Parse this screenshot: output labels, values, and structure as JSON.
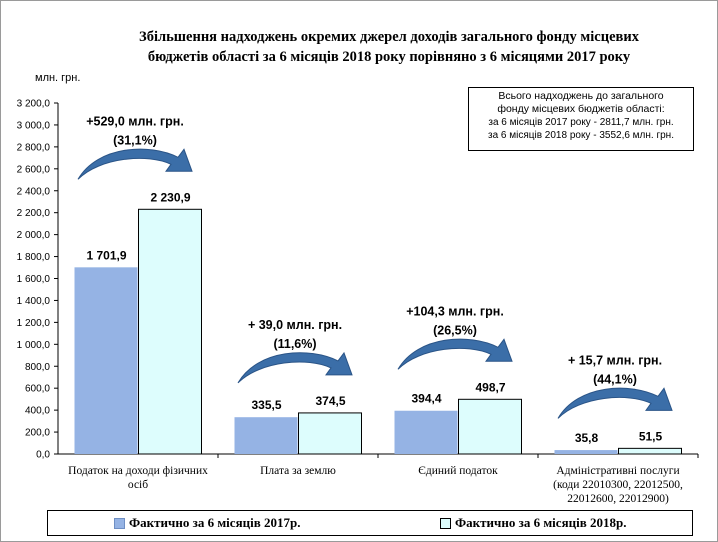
{
  "chart_data": {
    "type": "bar",
    "title_line1": "Збільшення надходжень окремих джерел доходів загального фонду місцевих",
    "title_line2": "бюджетів області за 6 місяців 2018 року порівняно з 6 місяцями 2017 року",
    "ylabel": "млн. грн.",
    "ylim": [
      0,
      3200
    ],
    "ytick_step": 200,
    "ytick_labels": [
      "0,0",
      "200,0",
      "400,0",
      "600,0",
      "800,0",
      "1 000,0",
      "1 200,0",
      "1 400,0",
      "1 600,0",
      "1 800,0",
      "2 000,0",
      "2 200,0",
      "2 400,0",
      "2 600,0",
      "2 800,0",
      "3 000,0",
      "3 200,0"
    ],
    "grid": false,
    "legend_position": "bottom",
    "categories": [
      [
        "Податок на доходи фізичних",
        "осіб"
      ],
      [
        "Плата за землю"
      ],
      [
        "Єдиний податок"
      ],
      [
        "Адміністративні послуги",
        "(коди 22010300, 22012500,",
        "22012600, 22012900)"
      ]
    ],
    "series": [
      {
        "name": "Фактично за 6 місяців 2017р.",
        "color": "#95b3e4",
        "values": [
          1701.9,
          335.5,
          394.4,
          35.8
        ],
        "labels": [
          "1 701,9",
          "335,5",
          "394,4",
          "35,8"
        ]
      },
      {
        "name": "Фактично за 6 місяців 2018р.",
        "color": "#ddfdfd",
        "values": [
          2230.9,
          374.5,
          498.7,
          51.5
        ],
        "labels": [
          "2 230,9",
          "374,5",
          "498,7",
          "51,5"
        ]
      }
    ],
    "annotations": [
      {
        "category": 0,
        "increase": "+529,0 млн. грн.",
        "percent": "(31,1%)"
      },
      {
        "category": 1,
        "increase": "+ 39,0 млн. грн.",
        "percent": "(11,6%)"
      },
      {
        "category": 2,
        "increase": "+104,3 млн. грн.",
        "percent": "(26,5%)"
      },
      {
        "category": 3,
        "increase": "+ 15,7 млн. грн.",
        "percent": "(44,1%)"
      }
    ],
    "arrow_color": "#3b6ea8"
  },
  "infobox": {
    "line1": "Всього надходжень до загального",
    "line2": "фонду місцевих бюджетів області:",
    "line3": "за 6 місяців 2017 року - 2811,7 млн. грн.",
    "line4": "за 6 місяців 2018 року - 3552,6 млн. грн."
  }
}
